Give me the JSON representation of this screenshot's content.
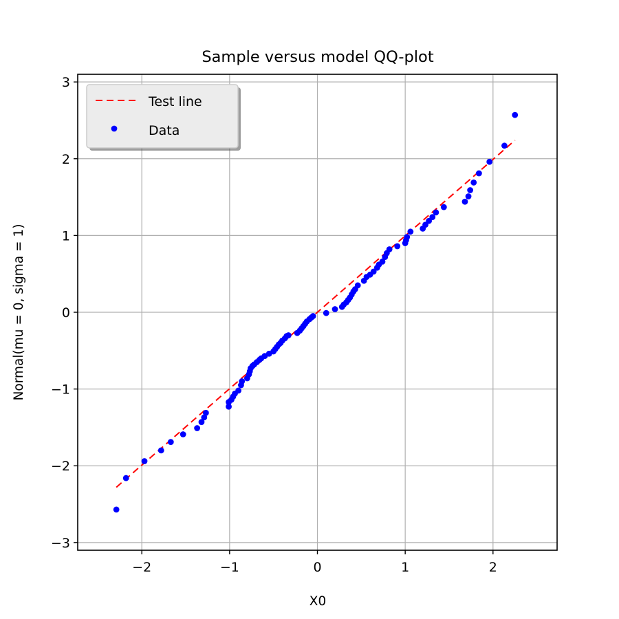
{
  "chart_data": {
    "type": "scatter",
    "title": "Sample versus model QQ-plot",
    "xlabel": "X0",
    "ylabel": "Normal(mu = 0, sigma = 1)",
    "xlim": [
      -2.73,
      2.73
    ],
    "ylim": [
      -3.1,
      3.1
    ],
    "xticks": [
      -2,
      -1,
      0,
      1,
      2
    ],
    "yticks": [
      -3,
      -2,
      -1,
      0,
      1,
      2,
      3
    ],
    "xtick_labels": [
      "−2",
      "−1",
      "0",
      "1",
      "2"
    ],
    "ytick_labels": [
      "−3",
      "−2",
      "−1",
      "0",
      "1",
      "2",
      "3"
    ],
    "grid": true,
    "legend_position": "top-left",
    "series": [
      {
        "name": "Test line",
        "kind": "line",
        "style": "dashed",
        "color": "#ff0000",
        "x": [
          -2.29,
          2.25
        ],
        "y": [
          -2.28,
          2.24
        ]
      },
      {
        "name": "Data",
        "kind": "scatter",
        "color": "#0000ff",
        "x": [
          -2.29,
          -2.18,
          -1.97,
          -1.78,
          -1.67,
          -1.53,
          -1.37,
          -1.32,
          -1.29,
          -1.27,
          -1.01,
          -1.01,
          -0.98,
          -0.96,
          -0.94,
          -0.9,
          -0.87,
          -0.86,
          -0.8,
          -0.78,
          -0.77,
          -0.76,
          -0.74,
          -0.72,
          -0.69,
          -0.66,
          -0.64,
          -0.6,
          -0.55,
          -0.5,
          -0.48,
          -0.46,
          -0.44,
          -0.42,
          -0.4,
          -0.37,
          -0.35,
          -0.33,
          -0.23,
          -0.2,
          -0.18,
          -0.16,
          -0.14,
          -0.12,
          -0.09,
          -0.07,
          -0.05,
          0.1,
          0.2,
          0.28,
          0.3,
          0.33,
          0.35,
          0.37,
          0.39,
          0.41,
          0.43,
          0.46,
          0.53,
          0.56,
          0.6,
          0.64,
          0.68,
          0.7,
          0.74,
          0.77,
          0.79,
          0.82,
          0.91,
          1.0,
          1.01,
          1.02,
          1.06,
          1.2,
          1.23,
          1.27,
          1.31,
          1.35,
          1.44,
          1.68,
          1.72,
          1.74,
          1.78,
          1.84,
          1.96,
          2.13,
          2.25
        ],
        "y": [
          -2.57,
          -2.16,
          -1.94,
          -1.8,
          -1.69,
          -1.59,
          -1.51,
          -1.43,
          -1.37,
          -1.31,
          -1.23,
          -1.17,
          -1.14,
          -1.1,
          -1.06,
          -1.02,
          -0.95,
          -0.9,
          -0.86,
          -0.81,
          -0.77,
          -0.73,
          -0.7,
          -0.68,
          -0.65,
          -0.62,
          -0.6,
          -0.57,
          -0.54,
          -0.51,
          -0.48,
          -0.45,
          -0.42,
          -0.4,
          -0.37,
          -0.34,
          -0.31,
          -0.3,
          -0.27,
          -0.24,
          -0.21,
          -0.18,
          -0.15,
          -0.12,
          -0.09,
          -0.07,
          -0.05,
          -0.01,
          0.04,
          0.07,
          0.1,
          0.13,
          0.16,
          0.19,
          0.23,
          0.27,
          0.3,
          0.35,
          0.41,
          0.46,
          0.49,
          0.53,
          0.58,
          0.62,
          0.66,
          0.72,
          0.77,
          0.82,
          0.86,
          0.9,
          0.94,
          0.98,
          1.05,
          1.09,
          1.14,
          1.19,
          1.24,
          1.3,
          1.37,
          1.44,
          1.51,
          1.59,
          1.69,
          1.81,
          1.96,
          2.17,
          2.57
        ]
      }
    ]
  }
}
